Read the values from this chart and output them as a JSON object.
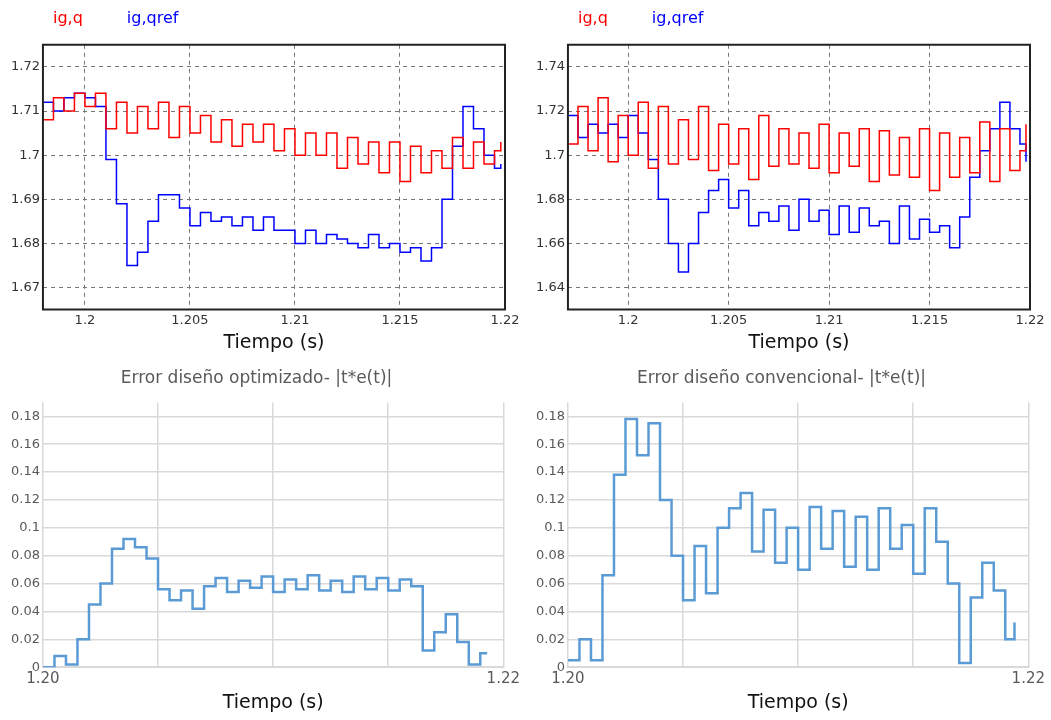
{
  "chart_data": [
    {
      "type": "step",
      "legend": "top left",
      "xlabel": "Tiempo (s)",
      "grid": true,
      "xlim": [
        1.198,
        1.22
      ],
      "xticks": [
        1.2,
        1.205,
        1.21,
        1.215,
        1.22
      ],
      "ylim": [
        1.665,
        1.725
      ],
      "yticks": [
        1.67,
        1.68,
        1.69,
        1.7,
        1.71,
        1.72
      ],
      "x": [
        1.198,
        1.1985,
        1.199,
        1.1995,
        1.2,
        1.2005,
        1.201,
        1.2015,
        1.202,
        1.2025,
        1.203,
        1.2035,
        1.204,
        1.2045,
        1.205,
        1.2055,
        1.206,
        1.2065,
        1.207,
        1.2075,
        1.208,
        1.2085,
        1.209,
        1.2095,
        1.21,
        1.2105,
        1.211,
        1.2115,
        1.212,
        1.2125,
        1.213,
        1.2135,
        1.214,
        1.2145,
        1.215,
        1.2155,
        1.216,
        1.2165,
        1.217,
        1.2175,
        1.218,
        1.2185,
        1.219,
        1.2195,
        1.2198
      ],
      "series": [
        {
          "name": "ig,q",
          "color": "#ff0000",
          "values": [
            1.708,
            1.713,
            1.71,
            1.714,
            1.711,
            1.714,
            1.706,
            1.712,
            1.705,
            1.711,
            1.706,
            1.712,
            1.704,
            1.711,
            1.705,
            1.709,
            1.703,
            1.708,
            1.702,
            1.707,
            1.703,
            1.707,
            1.701,
            1.706,
            1.7,
            1.705,
            1.7,
            1.705,
            1.697,
            1.704,
            1.698,
            1.703,
            1.696,
            1.703,
            1.694,
            1.702,
            1.696,
            1.701,
            1.697,
            1.704,
            1.697,
            1.703,
            1.698,
            1.701,
            1.703
          ]
        },
        {
          "name": "ig,qref",
          "color": "#0000ff",
          "values": [
            1.712,
            1.71,
            1.713,
            1.714,
            1.713,
            1.711,
            1.699,
            1.689,
            1.675,
            1.678,
            1.685,
            1.691,
            1.691,
            1.688,
            1.684,
            1.687,
            1.685,
            1.686,
            1.684,
            1.686,
            1.683,
            1.686,
            1.683,
            1.683,
            1.68,
            1.683,
            1.68,
            1.682,
            1.681,
            1.68,
            1.679,
            1.682,
            1.679,
            1.68,
            1.678,
            1.679,
            1.676,
            1.679,
            1.69,
            1.702,
            1.711,
            1.706,
            1.7,
            1.697,
            1.698
          ]
        }
      ]
    },
    {
      "type": "step",
      "legend": "top left",
      "xlabel": "Tiempo (s)",
      "grid": true,
      "xlim": [
        1.197,
        1.22
      ],
      "xticks": [
        1.2,
        1.205,
        1.21,
        1.215,
        1.22
      ],
      "ylim": [
        1.63,
        1.75
      ],
      "yticks": [
        1.64,
        1.66,
        1.68,
        1.7,
        1.72,
        1.74
      ],
      "x": [
        1.197,
        1.1975,
        1.198,
        1.1985,
        1.199,
        1.1995,
        1.2,
        1.2005,
        1.201,
        1.2015,
        1.202,
        1.2025,
        1.203,
        1.2035,
        1.204,
        1.2045,
        1.205,
        1.2055,
        1.206,
        1.2065,
        1.207,
        1.2075,
        1.208,
        1.2085,
        1.209,
        1.2095,
        1.21,
        1.2105,
        1.211,
        1.2115,
        1.212,
        1.2125,
        1.213,
        1.2135,
        1.214,
        1.2145,
        1.215,
        1.2155,
        1.216,
        1.2165,
        1.217,
        1.2175,
        1.218,
        1.2185,
        1.219,
        1.2195,
        1.2198
      ],
      "series": [
        {
          "name": "ig,q",
          "color": "#ff0000",
          "values": [
            1.705,
            1.722,
            1.702,
            1.726,
            1.697,
            1.718,
            1.7,
            1.724,
            1.694,
            1.722,
            1.696,
            1.716,
            1.698,
            1.722,
            1.693,
            1.714,
            1.696,
            1.712,
            1.689,
            1.718,
            1.695,
            1.712,
            1.696,
            1.71,
            1.694,
            1.714,
            1.692,
            1.71,
            1.695,
            1.712,
            1.688,
            1.711,
            1.691,
            1.708,
            1.69,
            1.712,
            1.684,
            1.71,
            1.69,
            1.708,
            1.692,
            1.715,
            1.688,
            1.712,
            1.693,
            1.702,
            1.714
          ]
        },
        {
          "name": "ig,qref",
          "color": "#0000ff",
          "values": [
            1.718,
            1.708,
            1.714,
            1.71,
            1.714,
            1.708,
            1.718,
            1.71,
            1.698,
            1.68,
            1.66,
            1.647,
            1.66,
            1.674,
            1.684,
            1.689,
            1.676,
            1.684,
            1.668,
            1.674,
            1.67,
            1.677,
            1.666,
            1.68,
            1.67,
            1.675,
            1.664,
            1.677,
            1.665,
            1.676,
            1.668,
            1.67,
            1.66,
            1.677,
            1.662,
            1.671,
            1.665,
            1.668,
            1.658,
            1.672,
            1.69,
            1.702,
            1.712,
            1.724,
            1.712,
            1.705,
            1.697
          ]
        }
      ]
    },
    {
      "type": "step",
      "title": "Error diseño optimizado- |t*e(t)|",
      "xlabel": "Tiempo (s)",
      "grid": true,
      "xlim": [
        1.2,
        1.22
      ],
      "xticks": [
        {
          "value": 1.2,
          "label": "1.20"
        },
        {
          "value": 1.205,
          "label": null
        },
        {
          "value": 1.21,
          "label": null
        },
        {
          "value": 1.215,
          "label": null
        },
        {
          "value": 1.22,
          "label": "1.22"
        }
      ],
      "ylim": [
        0,
        0.19
      ],
      "yticks": [
        0,
        0.02,
        0.04,
        0.06,
        0.08,
        0.1,
        0.12,
        0.14,
        0.16,
        0.18
      ],
      "x": [
        1.2,
        1.2005,
        1.201,
        1.2015,
        1.202,
        1.2025,
        1.203,
        1.2035,
        1.204,
        1.2045,
        1.205,
        1.2055,
        1.206,
        1.2065,
        1.207,
        1.2075,
        1.208,
        1.2085,
        1.209,
        1.2095,
        1.21,
        1.2105,
        1.211,
        1.2115,
        1.212,
        1.2125,
        1.213,
        1.2135,
        1.214,
        1.2145,
        1.215,
        1.2155,
        1.216,
        1.2165,
        1.217,
        1.2175,
        1.218,
        1.2185,
        1.219,
        1.2193
      ],
      "series": [
        {
          "color": "#5b9bd5",
          "values": [
            0,
            0.008,
            0.002,
            0.02,
            0.045,
            0.06,
            0.085,
            0.092,
            0.086,
            0.078,
            0.056,
            0.048,
            0.055,
            0.042,
            0.058,
            0.064,
            0.054,
            0.062,
            0.057,
            0.065,
            0.054,
            0.063,
            0.056,
            0.066,
            0.055,
            0.062,
            0.054,
            0.065,
            0.056,
            0.064,
            0.055,
            0.063,
            0.058,
            0.012,
            0.025,
            0.038,
            0.018,
            0.002,
            0.01,
            0.01
          ]
        }
      ]
    },
    {
      "type": "step",
      "title": "Error diseño convencional- |t*e(t)|",
      "xlabel": "Tiempo (s)",
      "grid": true,
      "xlim": [
        1.2,
        1.22
      ],
      "xticks": [
        {
          "value": 1.2,
          "label": "1.20"
        },
        {
          "value": 1.205,
          "label": null
        },
        {
          "value": 1.21,
          "label": null
        },
        {
          "value": 1.215,
          "label": null
        },
        {
          "value": 1.22,
          "label": "1.22"
        }
      ],
      "ylim": [
        0,
        0.19
      ],
      "yticks": [
        0,
        0.02,
        0.04,
        0.06,
        0.08,
        0.1,
        0.12,
        0.14,
        0.16,
        0.18
      ],
      "x": [
        1.2,
        1.2005,
        1.201,
        1.2015,
        1.202,
        1.2025,
        1.203,
        1.2035,
        1.204,
        1.2045,
        1.205,
        1.2055,
        1.206,
        1.2065,
        1.207,
        1.2075,
        1.208,
        1.2085,
        1.209,
        1.2095,
        1.21,
        1.2105,
        1.211,
        1.2115,
        1.212,
        1.2125,
        1.213,
        1.2135,
        1.214,
        1.2145,
        1.215,
        1.2155,
        1.216,
        1.2165,
        1.217,
        1.2175,
        1.218,
        1.2185,
        1.219,
        1.2194
      ],
      "series": [
        {
          "color": "#5b9bd5",
          "values": [
            0.005,
            0.02,
            0.005,
            0.066,
            0.138,
            0.178,
            0.152,
            0.175,
            0.12,
            0.08,
            0.048,
            0.087,
            0.053,
            0.1,
            0.114,
            0.125,
            0.083,
            0.113,
            0.075,
            0.1,
            0.07,
            0.115,
            0.085,
            0.112,
            0.072,
            0.108,
            0.07,
            0.114,
            0.085,
            0.102,
            0.067,
            0.114,
            0.09,
            0.06,
            0.003,
            0.05,
            0.075,
            0.055,
            0.02,
            0.032
          ]
        }
      ]
    }
  ]
}
